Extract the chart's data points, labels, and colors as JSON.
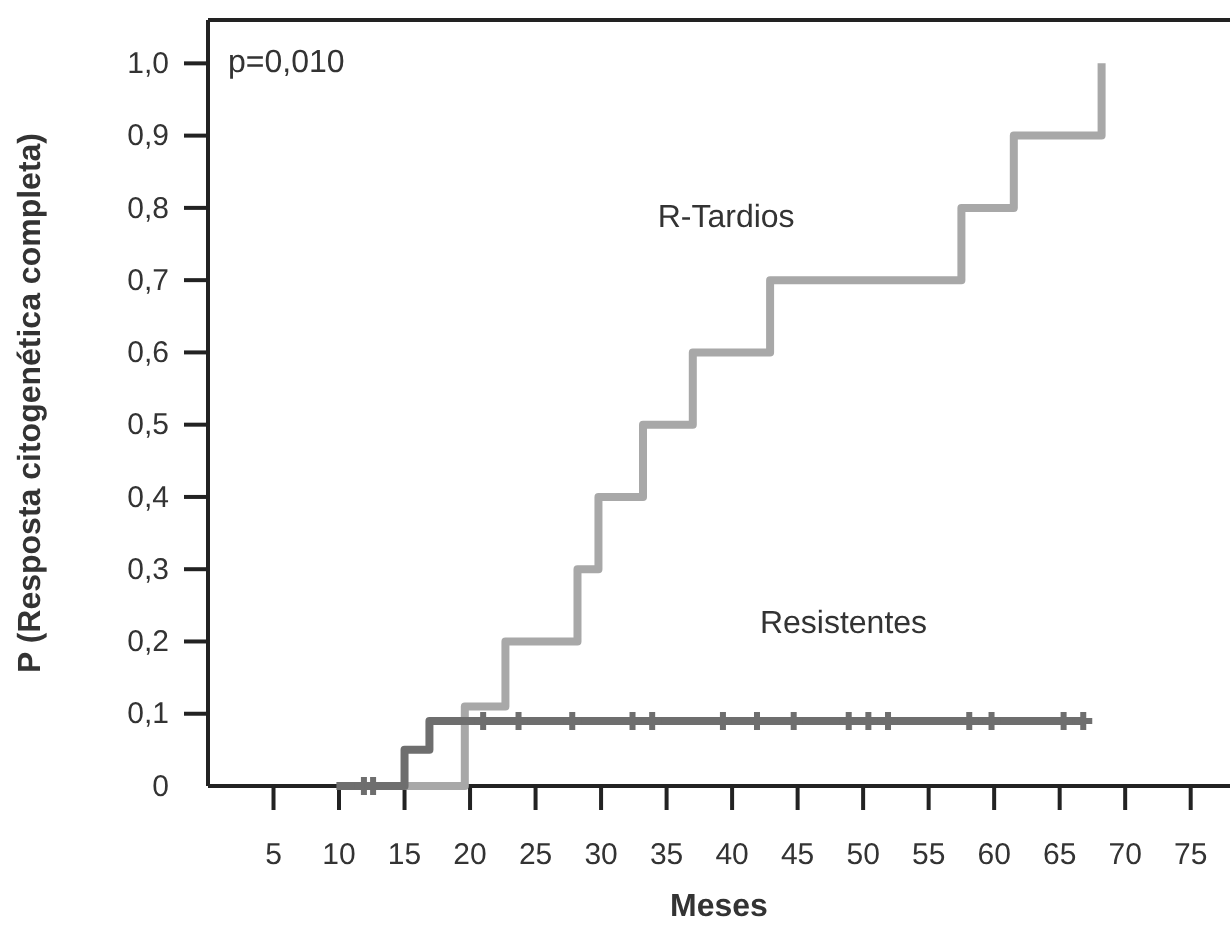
{
  "chart_data": {
    "type": "step",
    "xlabel": "Meses",
    "ylabel": "P (Resposta citogenética completa)",
    "annotations": [
      "p=0,010"
    ],
    "xlim": [
      0,
      78
    ],
    "xticks": [
      5,
      10,
      15,
      20,
      25,
      30,
      35,
      40,
      45,
      50,
      55,
      60,
      65,
      70,
      75
    ],
    "ylim": [
      0,
      1.06
    ],
    "yticks": [
      {
        "value": 0,
        "label": "0"
      },
      {
        "value": 0.1,
        "label": "0,1"
      },
      {
        "value": 0.2,
        "label": "0,2"
      },
      {
        "value": 0.3,
        "label": "0,3"
      },
      {
        "value": 0.4,
        "label": "0,4"
      },
      {
        "value": 0.5,
        "label": "0,5"
      },
      {
        "value": 0.6,
        "label": "0,6"
      },
      {
        "value": 0.7,
        "label": "0,7"
      },
      {
        "value": 0.8,
        "label": "0,8"
      },
      {
        "value": 0.9,
        "label": "0,9"
      },
      {
        "value": 1.0,
        "label": "1,0"
      }
    ],
    "series": [
      {
        "name": "R-Tardios",
        "color": "#a8a8a8",
        "x": [
          10,
          19.6,
          22.7,
          28.2,
          29.8,
          33.2,
          37,
          42.9,
          57.5,
          61.5,
          68.2
        ],
        "values": [
          0,
          0.11,
          0.2,
          0.3,
          0.4,
          0.5,
          0.6,
          0.7,
          0.8,
          0.9,
          1.0
        ]
      },
      {
        "name": "Resistentes",
        "color": "#6e6e6e",
        "x": [
          9.8,
          15,
          16.9,
          66.8
        ],
        "values": [
          0,
          0.05,
          0.09,
          0.09
        ]
      },
      {
        "type": "scatter",
        "marker": "cross",
        "color": "#6e6e6e",
        "x": [
          11.9,
          12.6,
          21,
          23.7,
          27.8,
          32.4,
          33.9,
          39.3,
          41.9,
          44.7,
          48.9,
          50.4,
          51.9,
          58.1,
          59.8,
          65.3,
          66.8
        ],
        "values": [
          0,
          0,
          0.09,
          0.09,
          0.09,
          0.09,
          0.09,
          0.09,
          0.09,
          0.09,
          0.09,
          0.09,
          0.09,
          0.09,
          0.09,
          0.09,
          0.09
        ]
      }
    ]
  }
}
